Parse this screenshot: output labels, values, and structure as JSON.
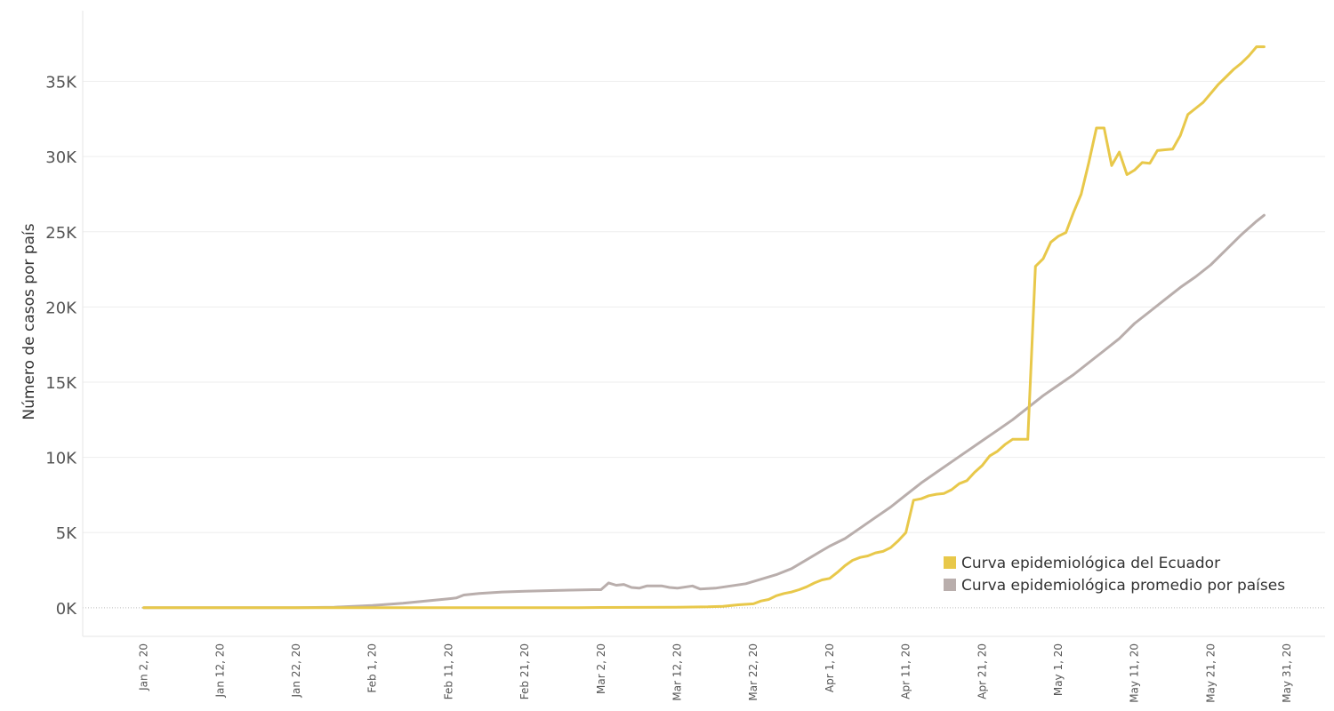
{
  "chart_data": {
    "type": "line",
    "title": "",
    "xlabel": "",
    "ylabel": "Número de casos por país",
    "x_tick_labels": [
      "Jan 2, 20",
      "Jan 12, 20",
      "Jan 22, 20",
      "Feb 1, 20",
      "Feb 11, 20",
      "Feb 21, 20",
      "Mar 2, 20",
      "Mar 12, 20",
      "Mar 22, 20",
      "Apr 1, 20",
      "Apr 11, 20",
      "Apr 21, 20",
      "May 1, 20",
      "May 11, 20",
      "May 21, 20",
      "May 31, 20"
    ],
    "x_tick_dates": [
      "2020-01-02",
      "2020-01-12",
      "2020-01-22",
      "2020-02-01",
      "2020-02-11",
      "2020-02-21",
      "2020-03-02",
      "2020-03-12",
      "2020-03-22",
      "2020-04-01",
      "2020-04-11",
      "2020-04-21",
      "2020-05-01",
      "2020-05-11",
      "2020-05-21",
      "2020-05-31"
    ],
    "y_tick_labels": [
      "0K",
      "5K",
      "10K",
      "15K",
      "20K",
      "25K",
      "30K",
      "35K"
    ],
    "y_tick_values": [
      0,
      5000,
      10000,
      15000,
      20000,
      25000,
      30000,
      35000
    ],
    "xlim": [
      "2019-12-25",
      "2020-06-05"
    ],
    "ylim": [
      -1900,
      39700
    ],
    "grid": true,
    "legend_position": "bottom-right",
    "series": [
      {
        "name": "Curva epidemiológica del Ecuador",
        "color": "#E8C84A",
        "points": [
          [
            "2020-01-02",
            0
          ],
          [
            "2020-01-22",
            0
          ],
          [
            "2020-02-01",
            0
          ],
          [
            "2020-02-11",
            0
          ],
          [
            "2020-02-21",
            0
          ],
          [
            "2020-02-28",
            0
          ],
          [
            "2020-03-02",
            20
          ],
          [
            "2020-03-12",
            40
          ],
          [
            "2020-03-16",
            60
          ],
          [
            "2020-03-18",
            100
          ],
          [
            "2020-03-20",
            200
          ],
          [
            "2020-03-22",
            260
          ],
          [
            "2020-03-23",
            450
          ],
          [
            "2020-03-24",
            550
          ],
          [
            "2020-03-25",
            800
          ],
          [
            "2020-03-26",
            950
          ],
          [
            "2020-03-27",
            1050
          ],
          [
            "2020-03-28",
            1200
          ],
          [
            "2020-03-29",
            1400
          ],
          [
            "2020-03-30",
            1650
          ],
          [
            "2020-03-31",
            1850
          ],
          [
            "2020-04-01",
            1950
          ],
          [
            "2020-04-02",
            2350
          ],
          [
            "2020-04-03",
            2800
          ],
          [
            "2020-04-04",
            3150
          ],
          [
            "2020-04-05",
            3350
          ],
          [
            "2020-04-06",
            3450
          ],
          [
            "2020-04-07",
            3650
          ],
          [
            "2020-04-08",
            3750
          ],
          [
            "2020-04-09",
            4000
          ],
          [
            "2020-04-10",
            4450
          ],
          [
            "2020-04-11",
            5000
          ],
          [
            "2020-04-12",
            7150
          ],
          [
            "2020-04-13",
            7250
          ],
          [
            "2020-04-14",
            7450
          ],
          [
            "2020-04-15",
            7550
          ],
          [
            "2020-04-16",
            7600
          ],
          [
            "2020-04-17",
            7850
          ],
          [
            "2020-04-18",
            8250
          ],
          [
            "2020-04-19",
            8450
          ],
          [
            "2020-04-20",
            9000
          ],
          [
            "2020-04-21",
            9450
          ],
          [
            "2020-04-22",
            10100
          ],
          [
            "2020-04-23",
            10400
          ],
          [
            "2020-04-24",
            10850
          ],
          [
            "2020-04-25",
            11200
          ],
          [
            "2020-04-26",
            11200
          ],
          [
            "2020-04-27",
            11200
          ],
          [
            "2020-04-28",
            22700
          ],
          [
            "2020-04-29",
            23200
          ],
          [
            "2020-04-30",
            24300
          ],
          [
            "2020-05-01",
            24700
          ],
          [
            "2020-05-02",
            24950
          ],
          [
            "2020-05-03",
            26300
          ],
          [
            "2020-05-04",
            27500
          ],
          [
            "2020-05-05",
            29600
          ],
          [
            "2020-05-06",
            31900
          ],
          [
            "2020-05-07",
            31900
          ],
          [
            "2020-05-08",
            29400
          ],
          [
            "2020-05-09",
            30300
          ],
          [
            "2020-05-10",
            28800
          ],
          [
            "2020-05-11",
            29100
          ],
          [
            "2020-05-12",
            29600
          ],
          [
            "2020-05-13",
            29550
          ],
          [
            "2020-05-14",
            30400
          ],
          [
            "2020-05-15",
            30450
          ],
          [
            "2020-05-16",
            30500
          ],
          [
            "2020-05-17",
            31400
          ],
          [
            "2020-05-18",
            32800
          ],
          [
            "2020-05-19",
            33200
          ],
          [
            "2020-05-20",
            33600
          ],
          [
            "2020-05-21",
            34200
          ],
          [
            "2020-05-22",
            34800
          ],
          [
            "2020-05-23",
            35300
          ],
          [
            "2020-05-24",
            35800
          ],
          [
            "2020-05-25",
            36200
          ],
          [
            "2020-05-26",
            36700
          ],
          [
            "2020-05-27",
            37300
          ],
          [
            "2020-05-28",
            37300
          ]
        ]
      },
      {
        "name": "Curva epidemiológica promedio por países",
        "color": "#B9AEAC",
        "points": [
          [
            "2020-01-02",
            0
          ],
          [
            "2020-01-22",
            10
          ],
          [
            "2020-01-27",
            40
          ],
          [
            "2020-02-01",
            150
          ],
          [
            "2020-02-05",
            300
          ],
          [
            "2020-02-08",
            450
          ],
          [
            "2020-02-11",
            600
          ],
          [
            "2020-02-12",
            650
          ],
          [
            "2020-02-13",
            850
          ],
          [
            "2020-02-15",
            950
          ],
          [
            "2020-02-18",
            1050
          ],
          [
            "2020-02-21",
            1100
          ],
          [
            "2020-02-25",
            1150
          ],
          [
            "2020-03-01",
            1200
          ],
          [
            "2020-03-02",
            1200
          ],
          [
            "2020-03-03",
            1650
          ],
          [
            "2020-03-04",
            1500
          ],
          [
            "2020-03-05",
            1550
          ],
          [
            "2020-03-06",
            1350
          ],
          [
            "2020-03-07",
            1300
          ],
          [
            "2020-03-08",
            1450
          ],
          [
            "2020-03-10",
            1450
          ],
          [
            "2020-03-11",
            1350
          ],
          [
            "2020-03-12",
            1300
          ],
          [
            "2020-03-14",
            1450
          ],
          [
            "2020-03-15",
            1250
          ],
          [
            "2020-03-17",
            1300
          ],
          [
            "2020-03-19",
            1450
          ],
          [
            "2020-03-21",
            1600
          ],
          [
            "2020-03-23",
            1900
          ],
          [
            "2020-03-25",
            2200
          ],
          [
            "2020-03-27",
            2600
          ],
          [
            "2020-03-29",
            3200
          ],
          [
            "2020-03-31",
            3800
          ],
          [
            "2020-04-01",
            4100
          ],
          [
            "2020-04-03",
            4600
          ],
          [
            "2020-04-05",
            5300
          ],
          [
            "2020-04-07",
            6000
          ],
          [
            "2020-04-09",
            6700
          ],
          [
            "2020-04-11",
            7500
          ],
          [
            "2020-04-13",
            8300
          ],
          [
            "2020-04-15",
            9000
          ],
          [
            "2020-04-17",
            9700
          ],
          [
            "2020-04-19",
            10400
          ],
          [
            "2020-04-21",
            11100
          ],
          [
            "2020-04-23",
            11800
          ],
          [
            "2020-04-25",
            12500
          ],
          [
            "2020-04-27",
            13300
          ],
          [
            "2020-04-29",
            14100
          ],
          [
            "2020-05-01",
            14800
          ],
          [
            "2020-05-03",
            15500
          ],
          [
            "2020-05-05",
            16300
          ],
          [
            "2020-05-07",
            17100
          ],
          [
            "2020-05-09",
            17900
          ],
          [
            "2020-05-11",
            18900
          ],
          [
            "2020-05-13",
            19700
          ],
          [
            "2020-05-15",
            20500
          ],
          [
            "2020-05-17",
            21300
          ],
          [
            "2020-05-19",
            22000
          ],
          [
            "2020-05-21",
            22800
          ],
          [
            "2020-05-23",
            23800
          ],
          [
            "2020-05-25",
            24800
          ],
          [
            "2020-05-27",
            25700
          ],
          [
            "2020-05-28",
            26100
          ]
        ]
      }
    ]
  }
}
